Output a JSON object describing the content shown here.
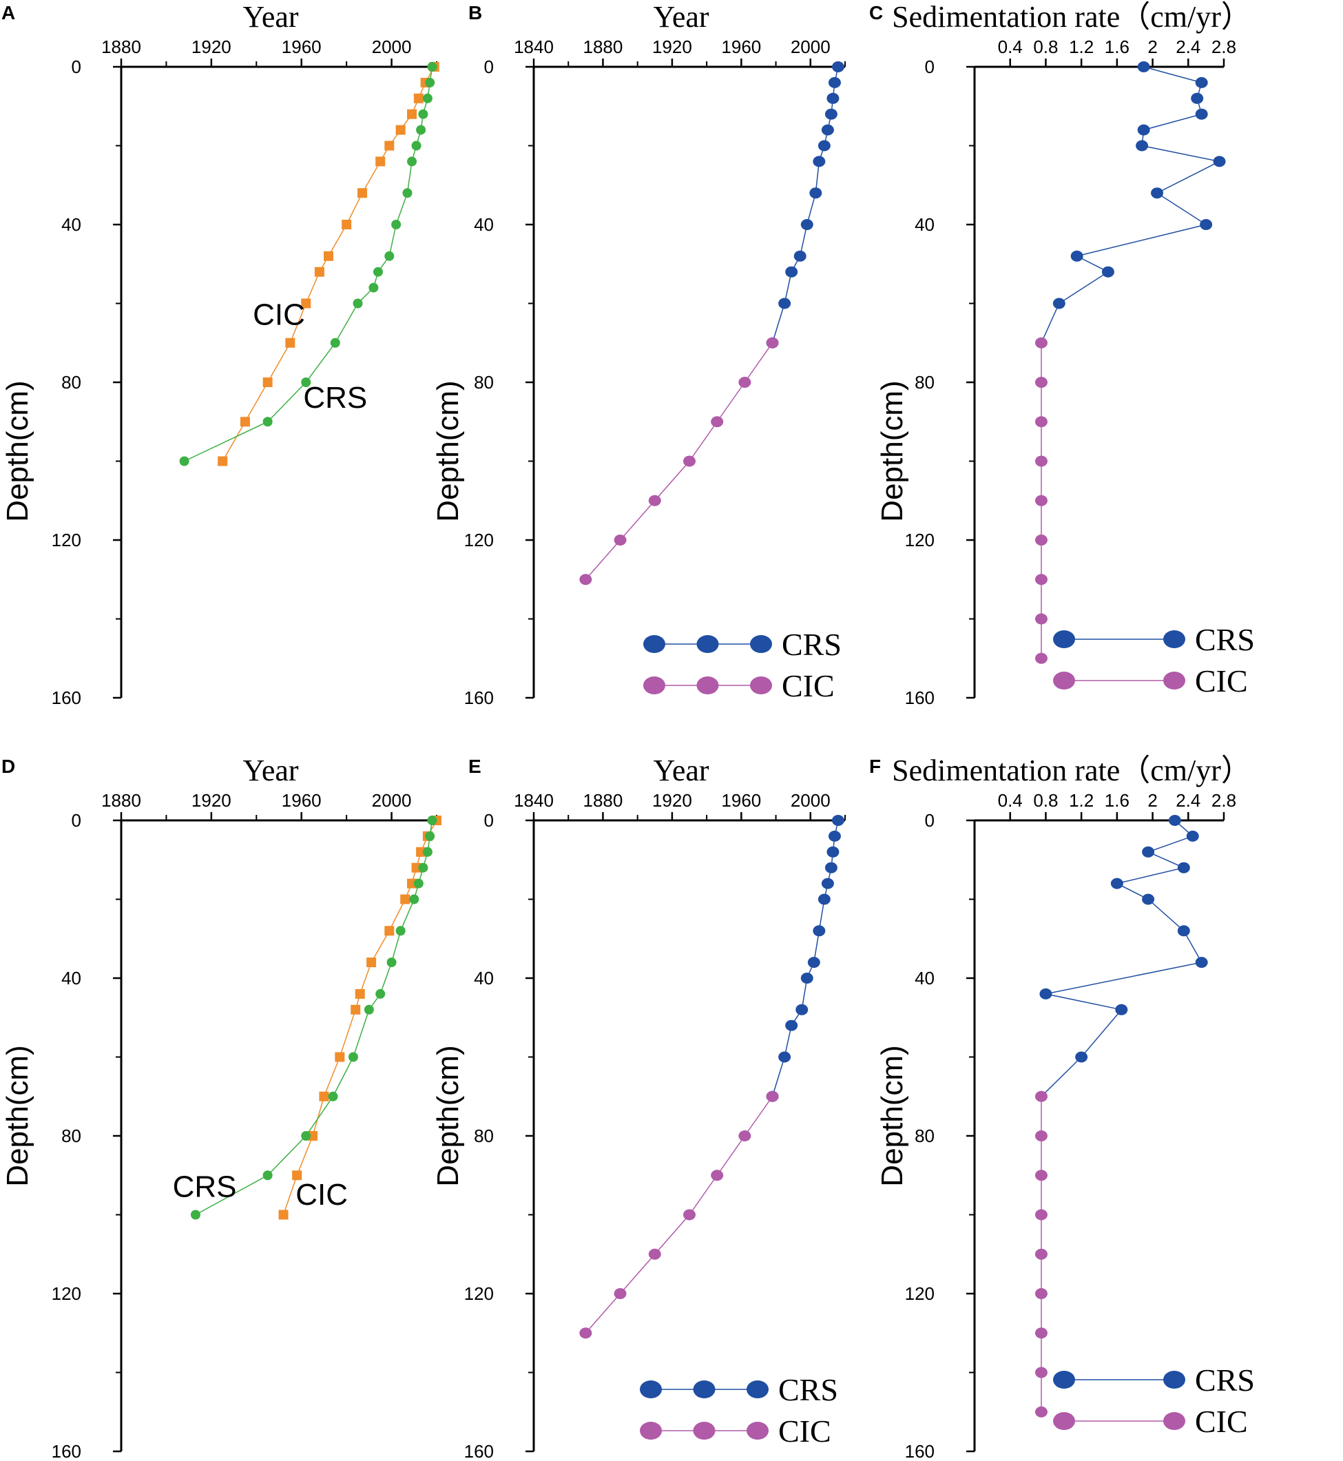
{
  "figure": {
    "panels": [
      "A",
      "B",
      "C",
      "D",
      "E",
      "F"
    ]
  },
  "colors": {
    "orange": "#f08c2a",
    "green": "#3cb043",
    "blue": "#1f4ea3",
    "magenta": "#b05aa8",
    "axis": "#000000"
  },
  "chart_data": [
    {
      "panel": "A",
      "type": "line",
      "title": "Year",
      "xlabel": "Year",
      "ylabel": "Depth(cm)",
      "xlim": [
        1880,
        2020
      ],
      "x_ticks": [
        1880,
        1920,
        1960,
        2000
      ],
      "x_minor_step": 20,
      "ylim": [
        0,
        160
      ],
      "y_ticks": [
        0,
        40,
        80,
        120,
        160
      ],
      "y_minor_step": 20,
      "series": [
        {
          "name": "CIC",
          "marker": "square",
          "color": "#f08c2a",
          "x": [
            2019,
            2015,
            2012,
            2009,
            2004,
            1999,
            1995,
            1987,
            1980,
            1972,
            1968,
            1962,
            1955,
            1945,
            1935,
            1925
          ],
          "y": [
            0,
            4,
            8,
            12,
            16,
            20,
            24,
            32,
            40,
            48,
            52,
            60,
            70,
            80,
            90,
            100
          ]
        },
        {
          "name": "CRS",
          "marker": "circle",
          "color": "#3cb043",
          "x": [
            2018,
            2017,
            2016,
            2014,
            2013,
            2011,
            2009,
            2007,
            2002,
            1999,
            1994,
            1992,
            1985,
            1975,
            1962,
            1945,
            1908
          ],
          "y": [
            0,
            4,
            8,
            12,
            16,
            20,
            24,
            32,
            40,
            48,
            52,
            56,
            60,
            70,
            80,
            90,
            100
          ]
        }
      ],
      "annotations": [
        {
          "text": "CIC",
          "x": 1950,
          "y": 63
        },
        {
          "text": "CRS",
          "x": 1975,
          "y": 84
        }
      ]
    },
    {
      "panel": "B",
      "type": "line",
      "title": "Year",
      "xlabel": "Year",
      "ylabel": "Depth(cm)",
      "xlim": [
        1840,
        2020
      ],
      "x_ticks": [
        1840,
        1880,
        1920,
        1960,
        2000
      ],
      "x_minor_step": 20,
      "ylim": [
        0,
        160
      ],
      "y_ticks": [
        0,
        40,
        80,
        120,
        160
      ],
      "y_minor_step": 20,
      "legend": "bottom-right",
      "series": [
        {
          "name": "CRS",
          "marker": "circle",
          "color": "#1f4ea3",
          "x": [
            2016,
            2014,
            2013,
            2012,
            2010,
            2008,
            2005,
            2003,
            1998,
            1994,
            1989,
            1985,
            1978
          ],
          "y": [
            0,
            4,
            8,
            12,
            16,
            20,
            24,
            32,
            40,
            48,
            52,
            60,
            70
          ]
        },
        {
          "name": "CIC",
          "marker": "circle",
          "color": "#b05aa8",
          "x": [
            1978,
            1962,
            1946,
            1930,
            1910,
            1890,
            1870
          ],
          "y": [
            70,
            80,
            90,
            100,
            110,
            120,
            130
          ]
        }
      ]
    },
    {
      "panel": "C",
      "type": "line",
      "title": "Sedimentation rate（cm/yr）",
      "xlabel": "Sedimentation rate（cm/yr）",
      "ylabel": "Depth(cm)",
      "xlim": [
        0,
        2.8
      ],
      "x_ticks": [
        0.4,
        0.8,
        1.2,
        1.6,
        2,
        2.4,
        2.8
      ],
      "ylim": [
        0,
        160
      ],
      "y_ticks": [
        0,
        40,
        80,
        120,
        160
      ],
      "y_minor_step": 20,
      "legend": "bottom-right",
      "series": [
        {
          "name": "CRS",
          "marker": "circle",
          "color": "#1f4ea3",
          "x": [
            1.9,
            2.55,
            2.5,
            2.55,
            1.9,
            1.88,
            2.75,
            2.05,
            2.6,
            1.15,
            1.5,
            0.95
          ],
          "y": [
            0,
            4,
            8,
            12,
            16,
            20,
            24,
            32,
            40,
            48,
            52,
            60
          ]
        },
        {
          "name": "CIC",
          "marker": "circle",
          "color": "#b05aa8",
          "x": [
            0.75,
            0.75,
            0.75,
            0.75,
            0.75,
            0.75,
            0.75,
            0.75,
            0.75
          ],
          "y": [
            70,
            80,
            90,
            100,
            110,
            120,
            130,
            140,
            150
          ]
        }
      ],
      "connector": {
        "from": [
          0.95,
          60
        ],
        "to": [
          0.75,
          70
        ]
      }
    },
    {
      "panel": "D",
      "type": "line",
      "title": "Year",
      "xlabel": "Year",
      "ylabel": "Depth(cm)",
      "xlim": [
        1880,
        2020
      ],
      "x_ticks": [
        1880,
        1920,
        1960,
        2000
      ],
      "x_minor_step": 20,
      "ylim": [
        0,
        160
      ],
      "y_ticks": [
        0,
        40,
        80,
        120,
        160
      ],
      "y_minor_step": 20,
      "series": [
        {
          "name": "CIC",
          "marker": "square",
          "color": "#f08c2a",
          "x": [
            2020,
            2016,
            2013,
            2011,
            2009,
            2006,
            1999,
            1991,
            1986,
            1984,
            1977,
            1970,
            1965,
            1958,
            1952
          ],
          "y": [
            0,
            4,
            8,
            12,
            16,
            20,
            28,
            36,
            44,
            48,
            60,
            70,
            80,
            90,
            100
          ]
        },
        {
          "name": "CRS",
          "marker": "circle",
          "color": "#3cb043",
          "x": [
            2018,
            2017,
            2016,
            2014,
            2012,
            2010,
            2004,
            2000,
            1995,
            1990,
            1983,
            1974,
            1962,
            1945,
            1913
          ],
          "y": [
            0,
            4,
            8,
            12,
            16,
            20,
            28,
            36,
            44,
            48,
            60,
            70,
            80,
            90,
            100
          ]
        }
      ],
      "annotations": [
        {
          "text": "CRS",
          "x": 1917,
          "y": 93
        },
        {
          "text": "CIC",
          "x": 1969,
          "y": 95
        }
      ]
    },
    {
      "panel": "E",
      "type": "line",
      "title": "Year",
      "xlabel": "Year",
      "ylabel": "Depth(cm)",
      "xlim": [
        1840,
        2020
      ],
      "x_ticks": [
        1840,
        1880,
        1920,
        1960,
        2000
      ],
      "x_minor_step": 20,
      "ylim": [
        0,
        160
      ],
      "y_ticks": [
        0,
        40,
        80,
        120,
        160
      ],
      "y_minor_step": 20,
      "legend": "bottom-right",
      "series": [
        {
          "name": "CRS",
          "marker": "circle",
          "color": "#1f4ea3",
          "x": [
            2016,
            2014,
            2013,
            2012,
            2010,
            2008,
            2005,
            2002,
            1998,
            1995,
            1989,
            1985,
            1978
          ],
          "y": [
            0,
            4,
            8,
            12,
            16,
            20,
            28,
            36,
            40,
            48,
            52,
            60,
            70
          ]
        },
        {
          "name": "CIC",
          "marker": "circle",
          "color": "#b05aa8",
          "x": [
            1978,
            1962,
            1946,
            1930,
            1910,
            1890,
            1870
          ],
          "y": [
            70,
            80,
            90,
            100,
            110,
            120,
            130
          ]
        }
      ]
    },
    {
      "panel": "F",
      "type": "line",
      "title": "Sedimentation rate（cm/yr）",
      "xlabel": "Sedimentation rate（cm/yr）",
      "ylabel": "Depth(cm)",
      "xlim": [
        0,
        2.8
      ],
      "x_ticks": [
        0.4,
        0.8,
        1.2,
        1.6,
        2,
        2.4,
        2.8
      ],
      "ylim": [
        0,
        160
      ],
      "y_ticks": [
        0,
        40,
        80,
        120,
        160
      ],
      "y_minor_step": 20,
      "legend": "bottom-right",
      "series": [
        {
          "name": "CRS",
          "marker": "circle",
          "color": "#1f4ea3",
          "x": [
            2.25,
            2.45,
            1.95,
            2.35,
            1.6,
            1.95,
            2.35,
            2.55,
            0.8,
            1.65,
            1.2
          ],
          "y": [
            0,
            4,
            8,
            12,
            16,
            20,
            28,
            36,
            44,
            48,
            60
          ]
        },
        {
          "name": "CIC",
          "marker": "circle",
          "color": "#b05aa8",
          "x": [
            0.75,
            0.75,
            0.75,
            0.75,
            0.75,
            0.75,
            0.75,
            0.75,
            0.75
          ],
          "y": [
            70,
            80,
            90,
            100,
            110,
            120,
            130,
            140,
            150
          ]
        }
      ],
      "connector": {
        "from": [
          1.2,
          60
        ],
        "to": [
          0.75,
          70
        ]
      }
    }
  ]
}
